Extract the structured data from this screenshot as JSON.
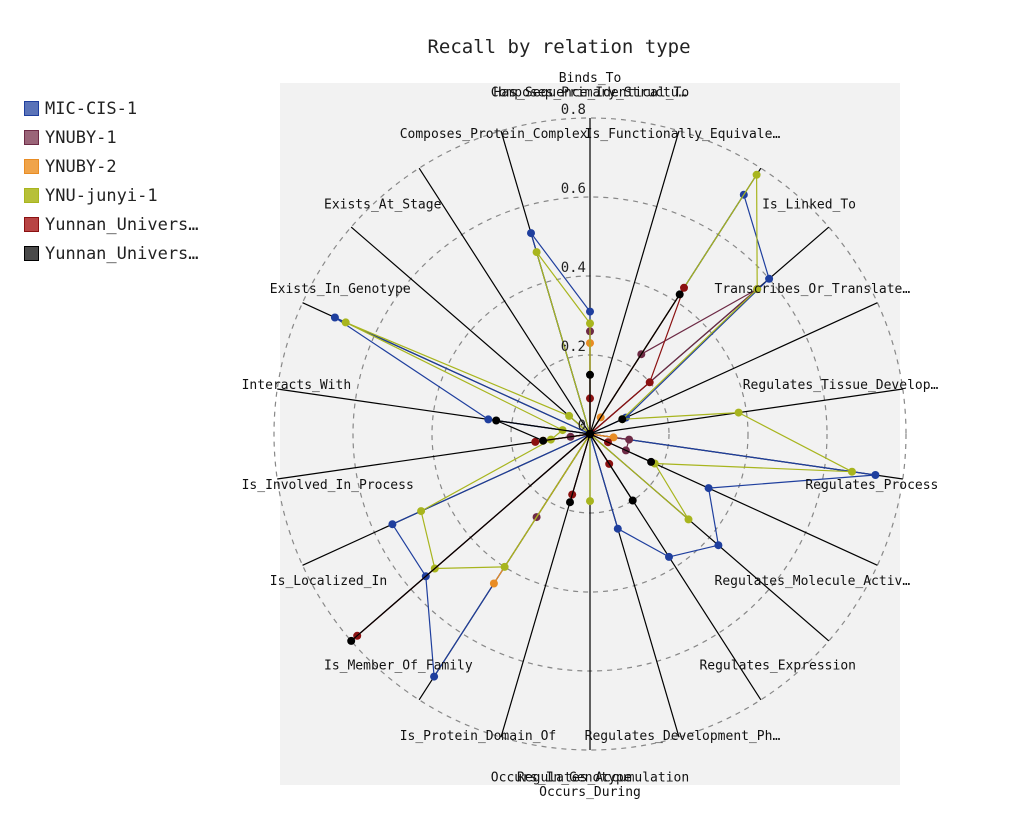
{
  "chart_data": {
    "type": "radar",
    "title": "Recall by relation type",
    "axes": [
      "Binds_To",
      "Has_Sequence_Identical_To",
      "Is_Functionally_Equivale…",
      "Is_Linked_To",
      "Transcribes_Or_Translate…",
      "Regulates_Tissue_Develop…",
      "Regulates_Process",
      "Regulates_Molecule_Activ…",
      "Regulates_Expression",
      "Regulates_Development_Ph…",
      "Regulates_Accumulation",
      "Occurs_During",
      "Occurs_In_Genotype",
      "Is_Protein_Domain_Of",
      "Is_Member_Of_Family",
      "Is_Localized_In",
      "Is_Involved_In_Process",
      "Interacts_With",
      "Exists_In_Genotype",
      "Exists_At_Stage",
      "Composes_Protein_Complex",
      "Composes_Primary_Structu…"
    ],
    "rlim": [
      0,
      0.8
    ],
    "rticks": [
      0,
      0.2,
      0.4,
      0.6,
      0.8
    ],
    "rtick_labels": [
      "0",
      "0.2",
      "0.4",
      "0.6",
      "0.8"
    ],
    "grid": true,
    "legend_position": "left",
    "series": [
      {
        "name": "MIC-CIS-1",
        "color": "#1f3f9e",
        "values": [
          0.31,
          0,
          0.72,
          0.6,
          0.1,
          0,
          0.73,
          0.33,
          0.43,
          0.37,
          0.25,
          0,
          0,
          0.73,
          0.55,
          0.55,
          0,
          0.26,
          0.71,
          0,
          0,
          0.53
        ]
      },
      {
        "name": "YNUBY-1",
        "color": "#6e2b46",
        "values": [
          0.26,
          0,
          0.24,
          0.56,
          0,
          0,
          0.1,
          0.1,
          0,
          0,
          0,
          0,
          0,
          0.25,
          0,
          0,
          0.05,
          0,
          0,
          0,
          0,
          0
        ]
      },
      {
        "name": "YNUBY-2",
        "color": "#e88c24",
        "values": [
          0.23,
          0,
          0.05,
          0,
          0,
          0,
          0.06,
          0,
          0,
          0,
          0,
          0,
          0,
          0.45,
          0,
          0,
          0.12,
          0,
          0,
          0,
          0,
          0
        ]
      },
      {
        "name": "YNU-junyi-1",
        "color": "#a8b51e",
        "values": [
          0.28,
          0,
          0.78,
          0.56,
          0.09,
          0.38,
          0.67,
          0.18,
          0.33,
          0,
          0,
          0.17,
          0,
          0.4,
          0.52,
          0.47,
          0.1,
          0.07,
          0.68,
          0.07,
          0,
          0.48
        ]
      },
      {
        "name": "Yunnan_Univers…",
        "color": "#8b1111",
        "values": [
          0.09,
          0,
          0.44,
          0.2,
          0,
          0,
          0,
          0.05,
          0,
          0.09,
          0,
          0,
          0.16,
          0,
          0.78,
          0,
          0.14,
          0,
          0,
          0,
          0,
          0
        ]
      },
      {
        "name": "Yunnan_Univers…",
        "color": "#000000",
        "values": [
          0.15,
          0,
          0.42,
          0,
          0.09,
          0,
          0,
          0.17,
          0,
          0.2,
          0,
          0,
          0.18,
          0,
          0.8,
          0,
          0.12,
          0.24,
          0,
          0,
          0,
          0
        ]
      }
    ]
  },
  "legend": {
    "items": [
      {
        "label": "MIC-CIS-1",
        "fill": "#5a73b8",
        "stroke": "#1f3f9e"
      },
      {
        "label": "YNUBY-1",
        "fill": "#9a6478",
        "stroke": "#6e2b46"
      },
      {
        "label": "YNUBY-2",
        "fill": "#f0a44a",
        "stroke": "#e88c24"
      },
      {
        "label": "YNU-junyi-1",
        "fill": "#b7c038",
        "stroke": "#a8b51e"
      },
      {
        "label": "Yunnan_Univers…",
        "fill": "#b84444",
        "stroke": "#8b1111"
      },
      {
        "label": "Yunnan_Univers…",
        "fill": "#4a4a4a",
        "stroke": "#000000"
      }
    ]
  }
}
